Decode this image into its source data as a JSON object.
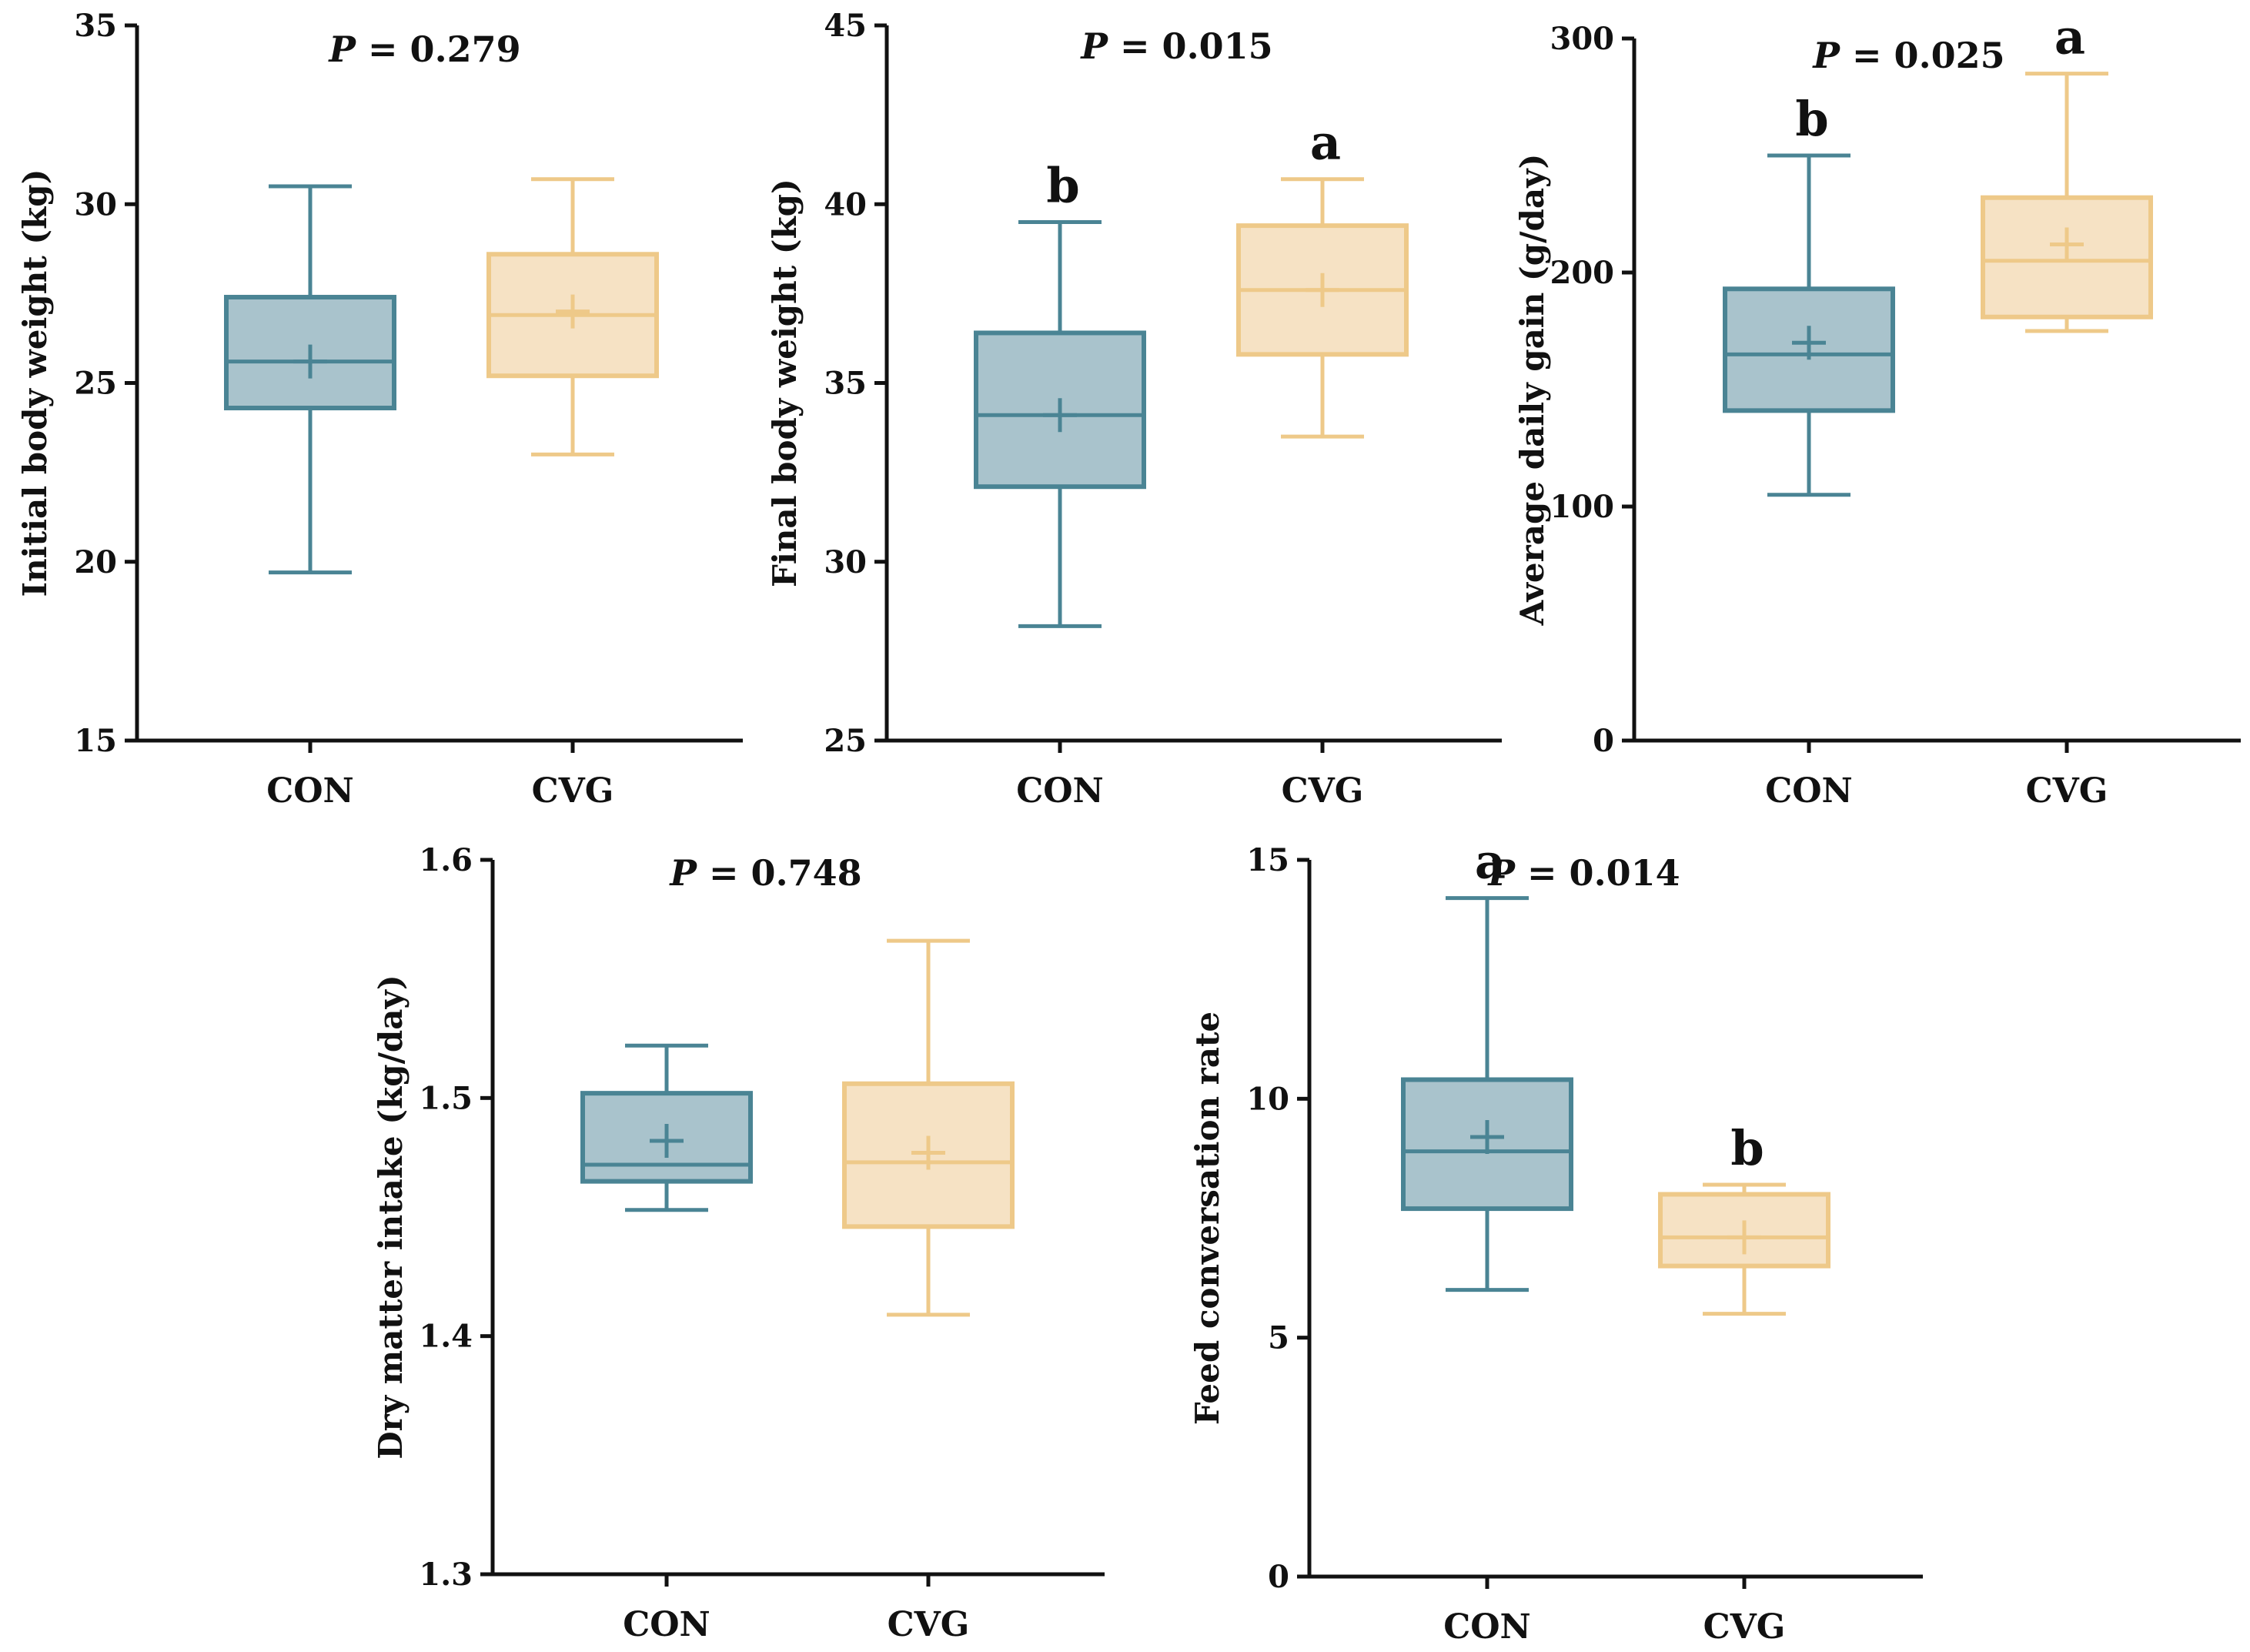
{
  "colors": {
    "con": {
      "stroke": "#4a8494",
      "fill": "#a9c3cc"
    },
    "cvg": {
      "stroke": "#eec989",
      "fill": "#f6e2c4"
    },
    "axis": "#111111"
  },
  "chart_data": [
    {
      "id": "initial-body-weight",
      "type": "box",
      "ylabel": "Initial body weight (kg)",
      "ylim": [
        15,
        35
      ],
      "yticks": [
        15,
        20,
        25,
        30,
        35
      ],
      "p_prefix": "P",
      "p_text": " = 0.279",
      "categories": [
        "CON",
        "CVG"
      ],
      "groups": [
        {
          "name": "CON",
          "min": 19.7,
          "q1": 24.3,
          "median": 25.6,
          "q3": 27.4,
          "max": 30.5,
          "mean": 25.6,
          "letter": ""
        },
        {
          "name": "CVG",
          "min": 23.0,
          "q1": 25.2,
          "median": 26.9,
          "q3": 28.6,
          "max": 30.7,
          "mean": 27.0,
          "letter": ""
        }
      ]
    },
    {
      "id": "final-body-weight",
      "type": "box",
      "ylabel": "Final body weight (kg)",
      "ylim": [
        25,
        45
      ],
      "yticks": [
        25,
        30,
        35,
        40,
        45
      ],
      "p_prefix": "P",
      "p_text": " = 0.015",
      "categories": [
        "CON",
        "CVG"
      ],
      "groups": [
        {
          "name": "CON",
          "min": 28.2,
          "q1": 32.1,
          "median": 34.1,
          "q3": 36.4,
          "max": 39.5,
          "mean": 34.1,
          "letter": "b"
        },
        {
          "name": "CVG",
          "min": 33.5,
          "q1": 35.8,
          "median": 37.6,
          "q3": 39.4,
          "max": 40.7,
          "mean": 37.6,
          "letter": "a"
        }
      ]
    },
    {
      "id": "average-daily-gain",
      "type": "box",
      "ylabel": "Average daily gain (g/day)",
      "ylim": [
        0,
        300
      ],
      "yticks": [
        0,
        100,
        200,
        300
      ],
      "p_prefix": "P",
      "p_text": " = 0.025",
      "categories": [
        "CON",
        "CVG"
      ],
      "groups": [
        {
          "name": "CON",
          "min": 105,
          "q1": 141,
          "median": 165,
          "q3": 193,
          "max": 250,
          "mean": 170,
          "letter": "b"
        },
        {
          "name": "CVG",
          "min": 175,
          "q1": 181,
          "median": 205,
          "q3": 232,
          "max": 285,
          "mean": 212,
          "letter": "a"
        }
      ]
    },
    {
      "id": "dry-matter-intake",
      "type": "box",
      "ylabel": "Dry matter intake (kg/day)",
      "ylim": [
        1.3,
        1.6
      ],
      "yticks": [
        1.3,
        1.4,
        1.5,
        1.6
      ],
      "p_prefix": "P",
      "p_text": " = 0.748",
      "categories": [
        "CON",
        "CVG"
      ],
      "groups": [
        {
          "name": "CON",
          "min": 1.453,
          "q1": 1.465,
          "median": 1.472,
          "q3": 1.502,
          "max": 1.522,
          "mean": 1.482,
          "letter": ""
        },
        {
          "name": "CVG",
          "min": 1.409,
          "q1": 1.446,
          "median": 1.473,
          "q3": 1.506,
          "max": 1.566,
          "mean": 1.477,
          "letter": ""
        }
      ]
    },
    {
      "id": "feed-conversation-rate",
      "type": "box",
      "ylabel": "Feed conversation rate",
      "ylim": [
        0,
        15
      ],
      "yticks": [
        0,
        5,
        10,
        15
      ],
      "p_prefix": "P",
      "p_text": " = 0.014",
      "categories": [
        "CON",
        "CVG"
      ],
      "groups": [
        {
          "name": "CON",
          "min": 6.0,
          "q1": 7.7,
          "median": 8.9,
          "q3": 10.4,
          "max": 14.2,
          "mean": 9.2,
          "letter": "a"
        },
        {
          "name": "CVG",
          "min": 5.5,
          "q1": 6.5,
          "median": 7.1,
          "q3": 8.0,
          "max": 8.2,
          "mean": 7.1,
          "letter": "b"
        }
      ]
    }
  ]
}
